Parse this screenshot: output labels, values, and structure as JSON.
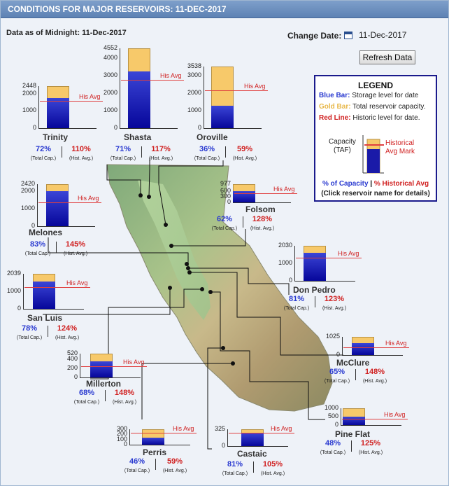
{
  "header": {
    "title": "CONDITIONS FOR MAJOR RESERVOIRS: 11-DEC-2017"
  },
  "data_as_of": "Data as of Midnight: 11-Dec-2017",
  "controls": {
    "change_date_label": "Change Date:",
    "date_value": "11-Dec-2017",
    "calendar_icon": "calendar-icon",
    "refresh_label": "Refresh Data"
  },
  "legend": {
    "title": "LEGEND",
    "blue_label": "Blue Bar:",
    "blue_text": "Storage level for date",
    "gold_label": "Gold Bar:",
    "gold_text": "Total reservoir capacity.",
    "red_label": "Red Line:",
    "red_text": "Historic level for date.",
    "capacity_line1": "Capacity",
    "capacity_line2": "(TAF)",
    "hist_line1": "Historical",
    "hist_line2": "Avg Mark",
    "pct_capacity": "% of Capacity",
    "pct_sep": "|",
    "pct_hist": "% Historical Avg",
    "click_note": "(Click reservoir name for details)"
  },
  "labels": {
    "his_avg": "His Avg",
    "total_cap": "(Total Cap.)",
    "hist_avg": "(Hist. Avg.)"
  },
  "colors": {
    "capacity_blue": "#2a3ad0",
    "historical_red": "#d02020",
    "gold": "#f7c96a",
    "header": "#6a8cc0"
  },
  "reservoirs": [
    {
      "name": "Trinity",
      "capacity": 2448,
      "ticks": [
        "2448",
        "2000",
        "1000",
        "0"
      ],
      "storage_pct": 72,
      "hist_pct": 110,
      "pct_capacity": "72%",
      "pct_hist_avg": "110%"
    },
    {
      "name": "Shasta",
      "capacity": 4552,
      "ticks": [
        "4552",
        "4000",
        "3000",
        "2000",
        "1000",
        "0"
      ],
      "storage_pct": 71,
      "hist_pct": 117,
      "pct_capacity": "71%",
      "pct_hist_avg": "117%"
    },
    {
      "name": "Oroville",
      "capacity": 3538,
      "ticks": [
        "3538",
        "3000",
        "2000",
        "1000",
        "0"
      ],
      "storage_pct": 36,
      "hist_pct": 59,
      "pct_capacity": "36%",
      "pct_hist_avg": "59%"
    },
    {
      "name": "Melones",
      "capacity": 2420,
      "ticks": [
        "2420",
        "2000",
        "1000",
        "0"
      ],
      "storage_pct": 83,
      "hist_pct": 145,
      "pct_capacity": "83%",
      "pct_hist_avg": "145%"
    },
    {
      "name": "Folsom",
      "capacity": 977,
      "ticks": [
        "977",
        "600",
        "300",
        "0"
      ],
      "storage_pct": 62,
      "hist_pct": 128,
      "pct_capacity": "62%",
      "pct_hist_avg": "128%"
    },
    {
      "name": "Don Pedro",
      "capacity": 2030,
      "ticks": [
        "2030",
        "1000",
        "0"
      ],
      "storage_pct": 81,
      "hist_pct": 123,
      "pct_capacity": "81%",
      "pct_hist_avg": "123%"
    },
    {
      "name": "San Luis",
      "capacity": 2039,
      "ticks": [
        "2039",
        "1000",
        "0"
      ],
      "storage_pct": 78,
      "hist_pct": 124,
      "pct_capacity": "78%",
      "pct_hist_avg": "124%"
    },
    {
      "name": "McClure",
      "capacity": 1025,
      "ticks": [
        "1025",
        "0"
      ],
      "storage_pct": 65,
      "hist_pct": 148,
      "pct_capacity": "65%",
      "pct_hist_avg": "148%"
    },
    {
      "name": "Millerton",
      "capacity": 520,
      "ticks": [
        "520",
        "400",
        "200",
        "0"
      ],
      "storage_pct": 68,
      "hist_pct": 148,
      "pct_capacity": "68%",
      "pct_hist_avg": "148%"
    },
    {
      "name": "Pine Flat",
      "capacity": 1000,
      "ticks": [
        "1000",
        "500",
        "0"
      ],
      "storage_pct": 48,
      "hist_pct": 125,
      "pct_capacity": "48%",
      "pct_hist_avg": "125%"
    },
    {
      "name": "Perris",
      "capacity": 300,
      "ticks": [
        "300",
        "200",
        "100",
        "0"
      ],
      "storage_pct": 46,
      "hist_pct": 59,
      "pct_capacity": "46%",
      "pct_hist_avg": "59%"
    },
    {
      "name": "Castaic",
      "capacity": 325,
      "ticks": [
        "325",
        "0"
      ],
      "storage_pct": 81,
      "hist_pct": 105,
      "pct_capacity": "81%",
      "pct_hist_avg": "105%"
    }
  ]
}
